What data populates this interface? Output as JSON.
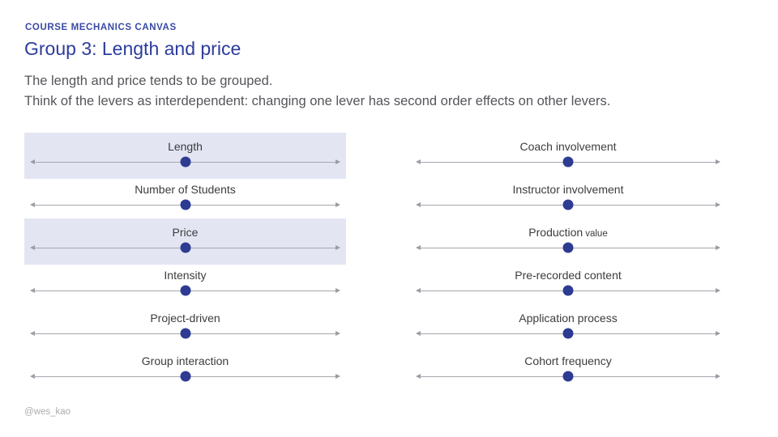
{
  "slide": {
    "eyebrow": "COURSE MECHANICS CANVAS",
    "title": "Group 3: Length and price",
    "body_line1": "The length and price tends to be grouped.",
    "body_line2": "Think of the levers as interdependent: changing one lever has second order effects on other levers.",
    "footer": "@wes_kao"
  },
  "colors": {
    "title_blue": "#2c3c9c",
    "eyebrow_blue": "#3a49a4",
    "dot_navy": "#2d3b92",
    "highlight_lavender": "#e3e5f3",
    "track_gray": "#a6a6ae",
    "body_gray": "#54555a",
    "label_gray": "#3b3c3f",
    "footer_gray": "#abacae"
  },
  "sliders": {
    "left": [
      {
        "label": "Length",
        "value": 0.5,
        "highlighted": true
      },
      {
        "label": "Number of Students",
        "value": 0.5,
        "highlighted": false
      },
      {
        "label": "Price",
        "value": 0.5,
        "highlighted": true
      },
      {
        "label": "Intensity",
        "value": 0.5,
        "highlighted": false
      },
      {
        "label": "Project-driven",
        "value": 0.5,
        "highlighted": false
      },
      {
        "label": "Group interaction",
        "value": 0.5,
        "highlighted": false
      }
    ],
    "right": [
      {
        "label": "Coach involvement",
        "value": 0.5,
        "highlighted": false
      },
      {
        "label": "Instructor involvement",
        "value": 0.5,
        "highlighted": false
      },
      {
        "label": "Production",
        "label_small": "value",
        "value": 0.5,
        "highlighted": false
      },
      {
        "label": "Pre-recorded content",
        "value": 0.5,
        "highlighted": false
      },
      {
        "label": "Application process",
        "value": 0.5,
        "highlighted": false
      },
      {
        "label": "Cohort frequency",
        "value": 0.5,
        "highlighted": false
      }
    ]
  }
}
